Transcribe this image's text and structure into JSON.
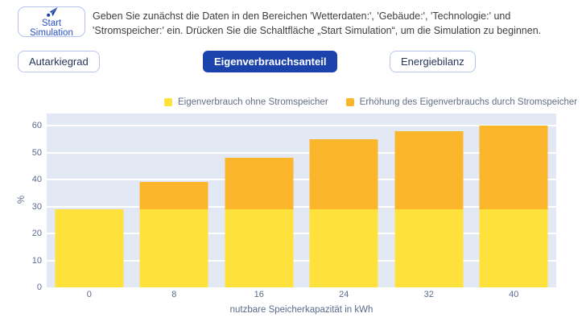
{
  "header": {
    "start_button_label": "Start Simulation",
    "instructions_line1": "Geben Sie zunächst die Daten in den Bereichen 'Wetterdaten:', 'Gebäude:', 'Technologie:' und",
    "instructions_line2": "'Stromspeicher:' ein. Drücken Sie die Schaltfläche „Start Simulation“, um die Simulation zu beginnen."
  },
  "tabs": [
    {
      "label": "Autarkiegrad",
      "active": false
    },
    {
      "label": "Eigenverbrauchsanteil",
      "active": true
    },
    {
      "label": "Energiebilanz",
      "active": false
    }
  ],
  "colors": {
    "accent_blue": "#1b43ab",
    "button_border": "#b8c7ee",
    "start_text_blue": "#2b50c4",
    "plot_background": "#E3E9F4",
    "gridline": "#ffffff",
    "axis_text": "#5a6b8c",
    "series_yellow": "#FFE13C",
    "series_orange": "#FCB62C"
  },
  "chart_data": {
    "type": "bar",
    "stacked": true,
    "categories": [
      "0",
      "8",
      "16",
      "24",
      "32",
      "40"
    ],
    "series": [
      {
        "name": "Eigenverbrauch ohne Stromspeicher",
        "color": "#FFE13C",
        "values": [
          29,
          29,
          29,
          29,
          29,
          29
        ]
      },
      {
        "name": "Erhöhung des Eigenverbrauchs durch Stromspeicher",
        "color": "#FCB62C",
        "values": [
          0,
          10,
          19,
          26,
          29,
          31
        ]
      }
    ],
    "totals": [
      29,
      39,
      48,
      55,
      58,
      60
    ],
    "xlabel": "nutzbare Speicherkapazität in kWh",
    "ylabel": "%",
    "ylim": [
      0,
      64
    ],
    "yticks": [
      0,
      10,
      20,
      30,
      40,
      50,
      60
    ],
    "legend_position": "top",
    "grid": "horizontal",
    "plot_bg": "#E3E9F4"
  }
}
